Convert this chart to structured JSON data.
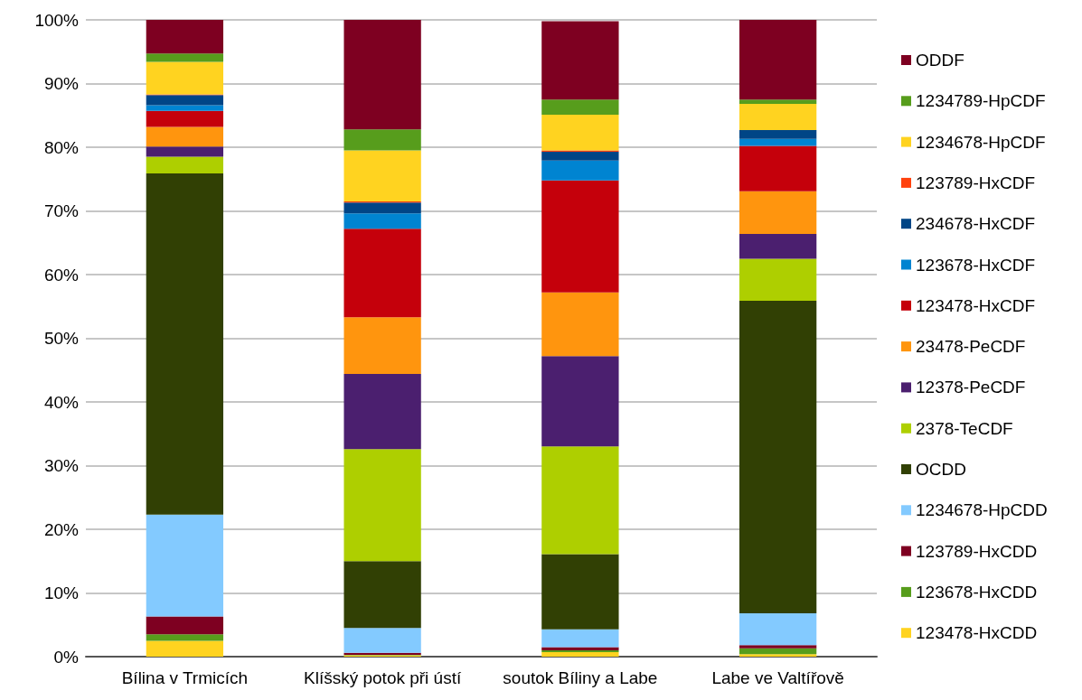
{
  "chart_data": {
    "type": "bar",
    "stacked": true,
    "categories": [
      "Bílina v Trmicích",
      "Klíšský potok při ústí",
      "soutok Bíliny a Labe",
      "Labe ve Valtířově"
    ],
    "series": [
      {
        "name": "123478-HxCDD",
        "color": "#ffd320",
        "values": [
          2.5,
          0.2,
          0.7,
          0.4
        ]
      },
      {
        "name": "123678-HxCDD",
        "color": "#579d1c",
        "values": [
          1.0,
          0.1,
          0.3,
          0.9
        ]
      },
      {
        "name": "123789-HxCDD",
        "color": "#7e0021",
        "values": [
          2.8,
          0.3,
          0.5,
          0.5
        ]
      },
      {
        "name": "1234678-HpCDD",
        "color": "#83caff",
        "values": [
          16.0,
          3.9,
          2.8,
          5.0
        ]
      },
      {
        "name": "OCDD",
        "color": "#314004",
        "values": [
          53.6,
          10.5,
          11.8,
          49.1
        ]
      },
      {
        "name": "2378-TeCDF",
        "color": "#aecf00",
        "values": [
          2.6,
          17.6,
          16.9,
          6.6
        ]
      },
      {
        "name": "12378-PeCDF",
        "color": "#4b1f6f",
        "values": [
          1.6,
          11.8,
          14.2,
          3.9
        ]
      },
      {
        "name": "23478-PeCDF",
        "color": "#ff950e",
        "values": [
          3.1,
          8.9,
          10.0,
          6.7
        ]
      },
      {
        "name": "123478-HxCDF",
        "color": "#c5000b",
        "values": [
          2.5,
          13.9,
          17.6,
          7.1
        ]
      },
      {
        "name": "123678-HxCDF",
        "color": "#0084d1",
        "values": [
          0.9,
          2.4,
          3.1,
          1.1
        ]
      },
      {
        "name": "234678-HxCDF",
        "color": "#004586",
        "values": [
          1.6,
          1.7,
          1.4,
          1.4
        ]
      },
      {
        "name": "123789-HxCDF",
        "color": "#ff420e",
        "values": [
          0.1,
          0.2,
          0.2,
          0.0
        ]
      },
      {
        "name": "1234678-HpCDF",
        "color": "#ffd320",
        "values": [
          5.1,
          8.0,
          5.6,
          4.1
        ]
      },
      {
        "name": "1234789-HpCDF",
        "color": "#579d1c",
        "values": [
          1.3,
          3.3,
          2.4,
          0.7
        ]
      },
      {
        "name": "ODDF",
        "color": "#7e0021",
        "values": [
          5.3,
          17.2,
          12.3,
          12.5
        ]
      }
    ],
    "ylim": [
      0,
      100
    ],
    "yticks": [
      {
        "value": 0,
        "label": "0%"
      },
      {
        "value": 10,
        "label": "10%"
      },
      {
        "value": 20,
        "label": "20%"
      },
      {
        "value": 30,
        "label": "30%"
      },
      {
        "value": 40,
        "label": "40%"
      },
      {
        "value": 50,
        "label": "50%"
      },
      {
        "value": 60,
        "label": "60%"
      },
      {
        "value": 70,
        "label": "70%"
      },
      {
        "value": 80,
        "label": "80%"
      },
      {
        "value": 90,
        "label": "90%"
      },
      {
        "value": 100,
        "label": "100%"
      }
    ],
    "grid": "y",
    "legend": "right"
  }
}
